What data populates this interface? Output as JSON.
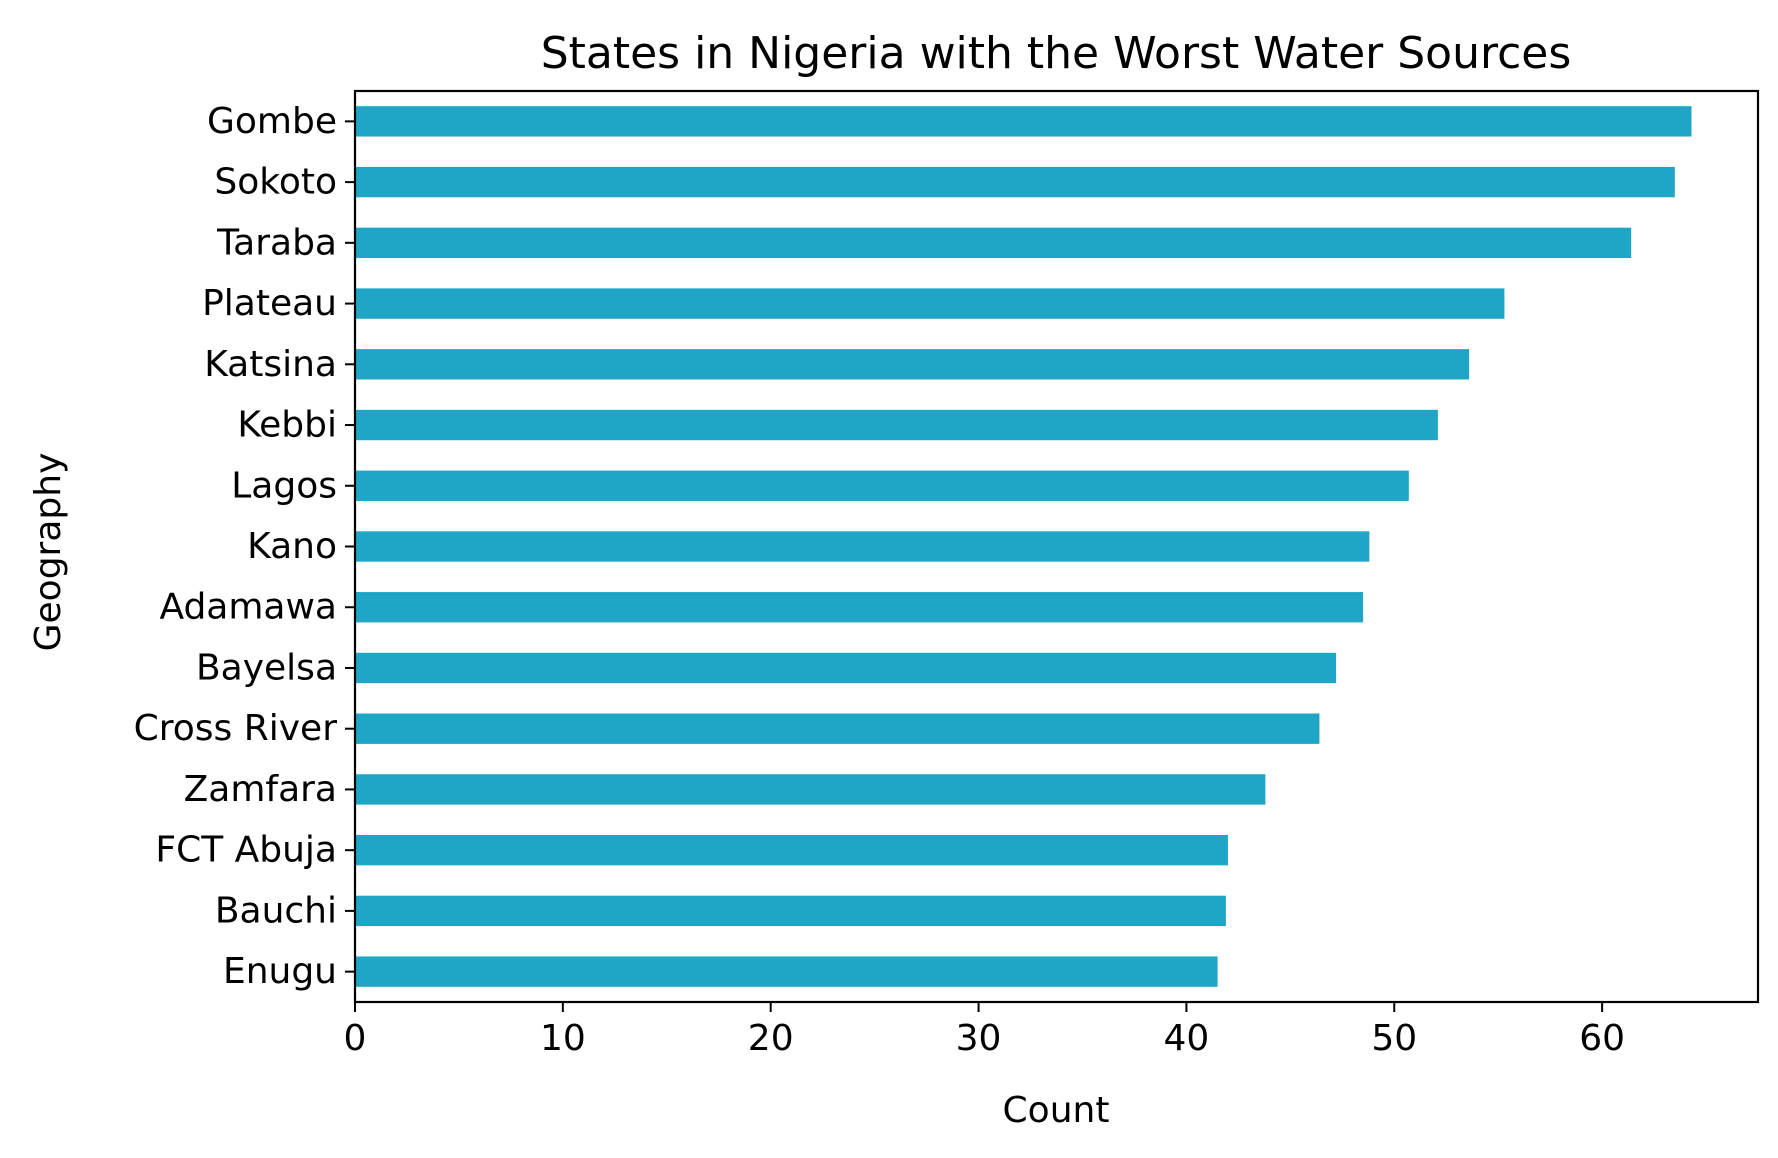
{
  "chart_data": {
    "type": "bar",
    "orientation": "horizontal",
    "title": "States in Nigeria with the Worst Water Sources",
    "xlabel": "Count",
    "ylabel": "Geography",
    "categories": [
      "Gombe",
      "Sokoto",
      "Taraba",
      "Plateau",
      "Katsina",
      "Kebbi",
      "Lagos",
      "Kano",
      "Adamawa",
      "Bayelsa",
      "Cross River",
      "Zamfara",
      "FCT Abuja",
      "Bauchi",
      "Enugu"
    ],
    "values": [
      64.3,
      63.5,
      61.4,
      55.3,
      53.6,
      52.1,
      50.7,
      48.8,
      48.5,
      47.2,
      46.4,
      43.8,
      42.0,
      41.9,
      41.5
    ],
    "xlim": [
      0,
      67.5
    ],
    "xticks": [
      0,
      10,
      20,
      30,
      40,
      50,
      60
    ],
    "grid": false,
    "legend": "none",
    "bar_color": "#1fa6c6"
  }
}
